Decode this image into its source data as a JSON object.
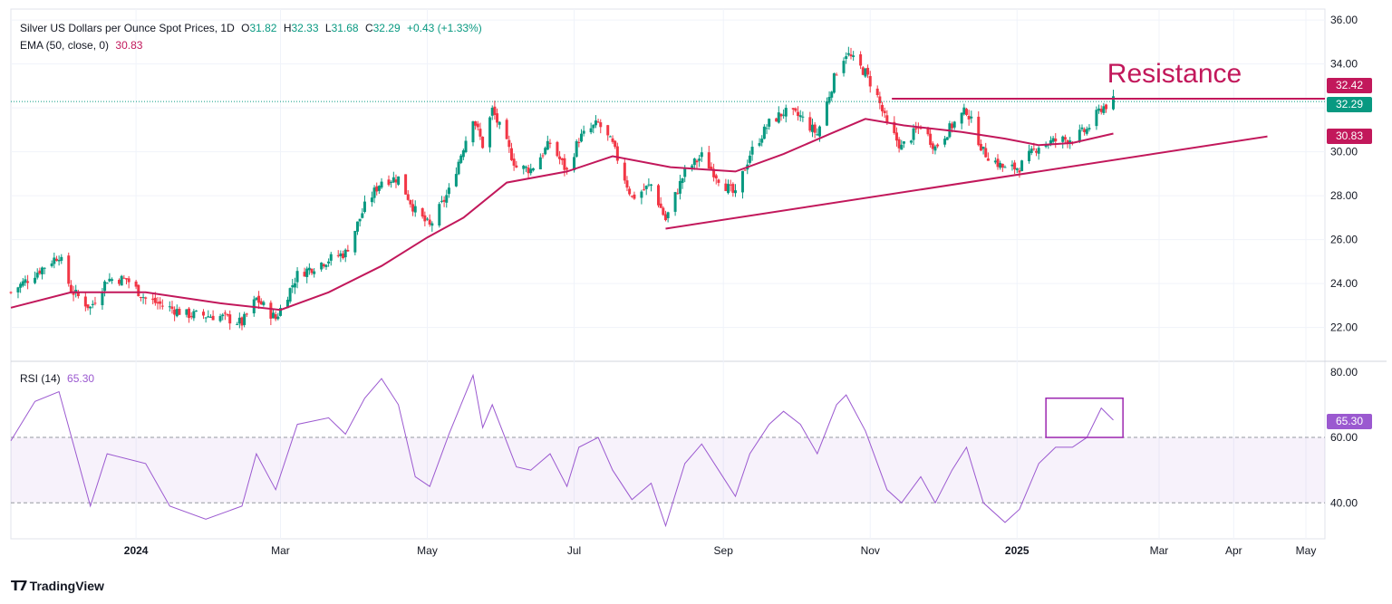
{
  "header": {
    "title": "Silver US Dollars per Ounce Spot Prices, 1D",
    "open_label": "O",
    "open": "31.82",
    "high_label": "H",
    "high": "32.33",
    "low_label": "L",
    "low": "31.68",
    "close_label": "C",
    "close": "32.29",
    "change": "+0.43 (+1.33%)",
    "ema_label": "EMA (50, close, 0)",
    "ema_value": "30.83",
    "rsi_label": "RSI (14)",
    "rsi_value": "65.30"
  },
  "brand": "TradingView",
  "colors": {
    "up": "#089981",
    "down": "#f23645",
    "ema": "#c2185b",
    "rsi": "#9b59d0",
    "annotation": "#c2185b"
  },
  "chart_data": [
    {
      "type": "candlestick",
      "title": "Silver US Dollars per Ounce Spot Prices, 1D",
      "x_tick_labels": [
        "2024",
        "Mar",
        "May",
        "Jul",
        "Sep",
        "Nov",
        "2025",
        "Mar",
        "Apr",
        "May"
      ],
      "y_tick_labels": [
        "22.00",
        "24.00",
        "26.00",
        "28.00",
        "30.00",
        "32.00",
        "34.00",
        "36.00"
      ],
      "ylim": [
        20.5,
        36.5
      ],
      "grid": true,
      "price_path": [
        [
          "2023-11-10",
          23.6
        ],
        [
          "2023-11-30",
          25.3
        ],
        [
          "2023-12-05",
          23.7
        ],
        [
          "2023-12-13",
          22.9
        ],
        [
          "2023-12-20",
          24.2
        ],
        [
          "2023-12-28",
          24.2
        ],
        [
          "2024-01-05",
          23.3
        ],
        [
          "2024-01-22",
          22.6
        ],
        [
          "2024-02-05",
          22.5
        ],
        [
          "2024-02-14",
          22.2
        ],
        [
          "2024-02-20",
          23.3
        ],
        [
          "2024-02-28",
          22.4
        ],
        [
          "2024-03-08",
          24.4
        ],
        [
          "2024-03-21",
          25.1
        ],
        [
          "2024-03-28",
          25.4
        ],
        [
          "2024-04-05",
          27.5
        ],
        [
          "2024-04-12",
          28.7
        ],
        [
          "2024-04-19",
          28.8
        ],
        [
          "2024-04-26",
          27.3
        ],
        [
          "2024-05-02",
          26.6
        ],
        [
          "2024-05-10",
          28.2
        ],
        [
          "2024-05-20",
          31.6
        ],
        [
          "2024-05-24",
          30.3
        ],
        [
          "2024-05-28",
          31.9
        ],
        [
          "2024-06-07",
          29.3
        ],
        [
          "2024-06-13",
          29.2
        ],
        [
          "2024-06-21",
          30.4
        ],
        [
          "2024-06-28",
          29.1
        ],
        [
          "2024-07-03",
          30.6
        ],
        [
          "2024-07-11",
          31.3
        ],
        [
          "2024-07-17",
          30.3
        ],
        [
          "2024-07-25",
          27.9
        ],
        [
          "2024-08-02",
          28.5
        ],
        [
          "2024-08-08",
          26.9
        ],
        [
          "2024-08-16",
          29.1
        ],
        [
          "2024-08-23",
          29.8
        ],
        [
          "2024-08-30",
          28.8
        ],
        [
          "2024-09-06",
          28.0
        ],
        [
          "2024-09-12",
          29.9
        ],
        [
          "2024-09-20",
          31.3
        ],
        [
          "2024-09-26",
          31.8
        ],
        [
          "2024-10-03",
          31.6
        ],
        [
          "2024-10-10",
          30.8
        ],
        [
          "2024-10-18",
          33.7
        ],
        [
          "2024-10-22",
          34.5
        ],
        [
          "2024-10-30",
          33.6
        ],
        [
          "2024-11-04",
          32.5
        ],
        [
          "2024-11-08",
          31.2
        ],
        [
          "2024-11-14",
          30.2
        ],
        [
          "2024-11-22",
          31.2
        ],
        [
          "2024-11-28",
          30.2
        ],
        [
          "2024-12-05",
          31.2
        ],
        [
          "2024-12-11",
          31.9
        ],
        [
          "2024-12-18",
          30.0
        ],
        [
          "2024-12-27",
          29.2
        ],
        [
          "2025-01-02",
          29.3
        ],
        [
          "2025-01-10",
          30.3
        ],
        [
          "2025-01-17",
          30.5
        ],
        [
          "2025-01-24",
          30.6
        ],
        [
          "2025-01-30",
          31.0
        ],
        [
          "2025-02-05",
          32.0
        ],
        [
          "2025-02-10",
          32.3
        ]
      ]
    },
    {
      "type": "line",
      "series": [
        {
          "name": "EMA (50, close, 0)",
          "last": 30.83
        }
      ],
      "path": [
        [
          "2023-11-10",
          22.9
        ],
        [
          "2023-12-05",
          23.6
        ],
        [
          "2024-01-05",
          23.6
        ],
        [
          "2024-02-05",
          23.1
        ],
        [
          "2024-03-01",
          22.8
        ],
        [
          "2024-03-21",
          23.6
        ],
        [
          "2024-04-12",
          24.8
        ],
        [
          "2024-05-01",
          26.1
        ],
        [
          "2024-05-16",
          27.0
        ],
        [
          "2024-06-03",
          28.6
        ],
        [
          "2024-06-28",
          29.1
        ],
        [
          "2024-07-17",
          29.8
        ],
        [
          "2024-08-10",
          29.3
        ],
        [
          "2024-09-06",
          29.1
        ],
        [
          "2024-09-26",
          29.9
        ],
        [
          "2024-10-15",
          30.8
        ],
        [
          "2024-10-30",
          31.5
        ],
        [
          "2024-11-15",
          31.2
        ],
        [
          "2024-12-09",
          30.9
        ],
        [
          "2024-12-27",
          30.6
        ],
        [
          "2025-01-10",
          30.3
        ],
        [
          "2025-01-24",
          30.4
        ],
        [
          "2025-02-10",
          30.83
        ]
      ],
      "annotations": {
        "resistance_label": "Resistance",
        "resistance_level": 32.42,
        "trendline_from": [
          "2024-08-08",
          26.5
        ],
        "trendline_to": [
          "2025-04-15",
          30.7
        ]
      }
    },
    {
      "type": "line",
      "title": "RSI (14)",
      "series": [
        {
          "name": "RSI (14)",
          "last": 65.3
        }
      ],
      "y_tick_labels": [
        "40.00",
        "60.00",
        "80.00"
      ],
      "ylim": [
        29,
        83
      ],
      "band": [
        40,
        60
      ],
      "path": [
        [
          "2023-11-10",
          59
        ],
        [
          "2023-11-20",
          71
        ],
        [
          "2023-11-30",
          74
        ],
        [
          "2023-12-13",
          39
        ],
        [
          "2023-12-20",
          55
        ],
        [
          "2024-01-05",
          52
        ],
        [
          "2024-01-15",
          39
        ],
        [
          "2024-01-30",
          35
        ],
        [
          "2024-02-14",
          39
        ],
        [
          "2024-02-20",
          55
        ],
        [
          "2024-02-28",
          44
        ],
        [
          "2024-03-08",
          64
        ],
        [
          "2024-03-21",
          66
        ],
        [
          "2024-03-28",
          61
        ],
        [
          "2024-04-05",
          72
        ],
        [
          "2024-04-12",
          78
        ],
        [
          "2024-04-19",
          70
        ],
        [
          "2024-04-26",
          48
        ],
        [
          "2024-05-02",
          45
        ],
        [
          "2024-05-10",
          61
        ],
        [
          "2024-05-20",
          79
        ],
        [
          "2024-05-24",
          63
        ],
        [
          "2024-05-28",
          70
        ],
        [
          "2024-06-07",
          51
        ],
        [
          "2024-06-13",
          50
        ],
        [
          "2024-06-21",
          55
        ],
        [
          "2024-06-28",
          45
        ],
        [
          "2024-07-03",
          57
        ],
        [
          "2024-07-11",
          60
        ],
        [
          "2024-07-17",
          50
        ],
        [
          "2024-07-25",
          41
        ],
        [
          "2024-08-02",
          46
        ],
        [
          "2024-08-08",
          33
        ],
        [
          "2024-08-16",
          52
        ],
        [
          "2024-08-23",
          58
        ],
        [
          "2024-08-30",
          50
        ],
        [
          "2024-09-06",
          42
        ],
        [
          "2024-09-12",
          55
        ],
        [
          "2024-09-20",
          64
        ],
        [
          "2024-09-26",
          68
        ],
        [
          "2024-10-03",
          64
        ],
        [
          "2024-10-10",
          55
        ],
        [
          "2024-10-18",
          70
        ],
        [
          "2024-10-22",
          73
        ],
        [
          "2024-10-30",
          62
        ],
        [
          "2024-11-04",
          52
        ],
        [
          "2024-11-08",
          44
        ],
        [
          "2024-11-14",
          40
        ],
        [
          "2024-11-22",
          48
        ],
        [
          "2024-11-28",
          40
        ],
        [
          "2024-12-05",
          50
        ],
        [
          "2024-12-11",
          57
        ],
        [
          "2024-12-18",
          40
        ],
        [
          "2024-12-27",
          34
        ],
        [
          "2025-01-02",
          38
        ],
        [
          "2025-01-10",
          52
        ],
        [
          "2025-01-17",
          57
        ],
        [
          "2025-01-24",
          57
        ],
        [
          "2025-01-30",
          60
        ],
        [
          "2025-02-05",
          69
        ],
        [
          "2025-02-10",
          65.3
        ]
      ],
      "annotations": {
        "box_label": "",
        "box_from": [
          "2025-01-13",
          60
        ],
        "box_to": [
          "2025-02-14",
          72
        ]
      }
    }
  ]
}
